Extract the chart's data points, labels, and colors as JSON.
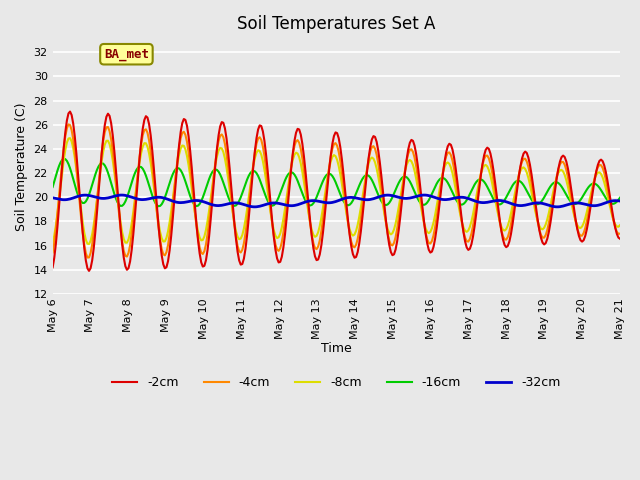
{
  "title": "Soil Temperatures Set A",
  "xlabel": "Time",
  "ylabel": "Soil Temperature (C)",
  "ylim": [
    12,
    33
  ],
  "yticks": [
    12,
    14,
    16,
    18,
    20,
    22,
    24,
    26,
    28,
    30,
    32
  ],
  "plot_bg_color": "#e8e8e8",
  "grid_color": "#ffffff",
  "label_box_text": "BA_met",
  "label_box_facecolor": "#ffff99",
  "label_box_edgecolor": "#888800",
  "label_box_textcolor": "#880000",
  "series": {
    "-2cm": {
      "color": "#dd0000",
      "lw": 1.5
    },
    "-4cm": {
      "color": "#ff8800",
      "lw": 1.5
    },
    "-8cm": {
      "color": "#dddd00",
      "lw": 1.5
    },
    "-16cm": {
      "color": "#00cc00",
      "lw": 1.5
    },
    "-32cm": {
      "color": "#0000cc",
      "lw": 2.0
    }
  },
  "legend_order": [
    "-2cm",
    "-4cm",
    "-8cm",
    "-16cm",
    "-32cm"
  ],
  "x_tick_labels": [
    "May 6",
    "May 7",
    "May 8",
    "May 9",
    "May 10",
    "May 11",
    "May 12",
    "May 13",
    "May 14",
    "May 15",
    "May 16",
    "May 17",
    "May 18",
    "May 19",
    "May 20",
    "May 21"
  ],
  "n_days": 15,
  "pts_per_day": 24
}
